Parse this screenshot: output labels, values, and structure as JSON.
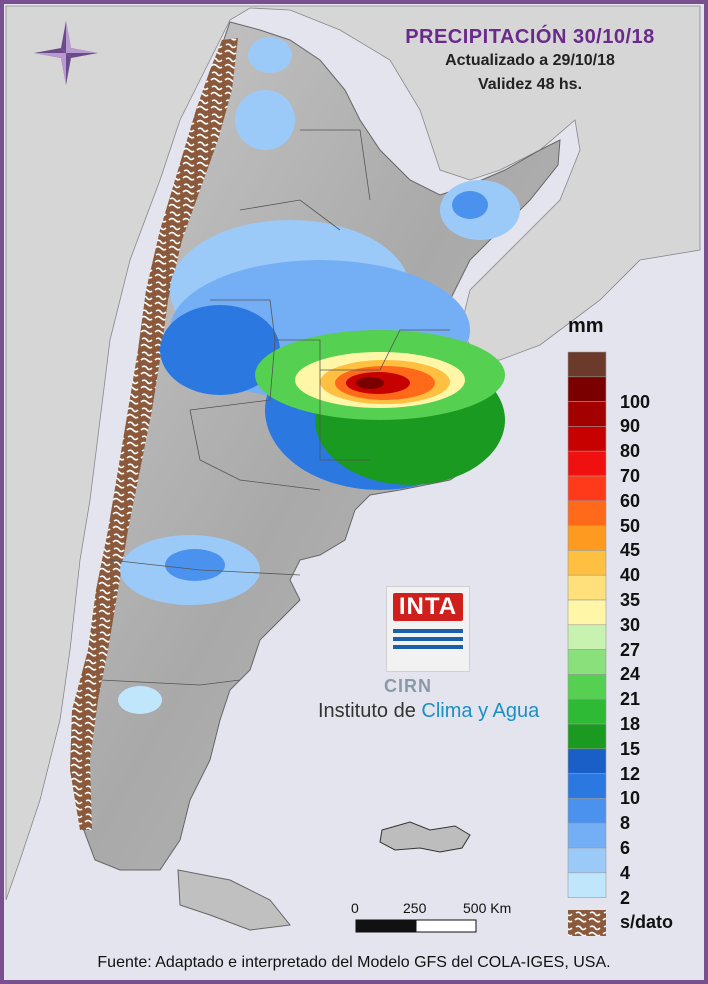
{
  "header": {
    "title": "PRECIPITACIÓN 30/10/18",
    "updated": "Actualizado a 29/10/18",
    "validity": "Validez 48 hs."
  },
  "legend": {
    "unit": "mm",
    "items": [
      {
        "label": "",
        "color": "#6b3a2a"
      },
      {
        "label": "100",
        "color": "#7a0000"
      },
      {
        "label": "90",
        "color": "#a30000"
      },
      {
        "label": "80",
        "color": "#c70000"
      },
      {
        "label": "70",
        "color": "#f01010"
      },
      {
        "label": "60",
        "color": "#ff3a1a"
      },
      {
        "label": "50",
        "color": "#ff6a1a"
      },
      {
        "label": "45",
        "color": "#ff9a20"
      },
      {
        "label": "40",
        "color": "#ffbf40"
      },
      {
        "label": "35",
        "color": "#ffe07a"
      },
      {
        "label": "30",
        "color": "#fff6a8"
      },
      {
        "label": "27",
        "color": "#c8f2b0"
      },
      {
        "label": "24",
        "color": "#8ae07a"
      },
      {
        "label": "21",
        "color": "#55d050"
      },
      {
        "label": "18",
        "color": "#2fba36"
      },
      {
        "label": "15",
        "color": "#1a9a20"
      },
      {
        "label": "12",
        "color": "#1a5fc8"
      },
      {
        "label": "10",
        "color": "#2a78e0"
      },
      {
        "label": "8",
        "color": "#4a92ee"
      },
      {
        "label": "6",
        "color": "#74aef4"
      },
      {
        "label": "4",
        "color": "#9ccaf8"
      },
      {
        "label": "2",
        "color": "#bfe6fb"
      }
    ],
    "no_data_label": "s/dato",
    "no_data_color": "#8b5a3c"
  },
  "scale_bar": {
    "labels": [
      "0",
      "250",
      "500 Km"
    ]
  },
  "logo": {
    "inta": "INTA",
    "cirn": "CIRN",
    "institute_prefix": "Instituto de ",
    "institute_accent": "Clima y Agua"
  },
  "footer": {
    "source": "Fuente: Adaptado e interpretado del Modelo GFS del COLA-IGES, USA."
  },
  "icons": {
    "compass": "compass-rose-icon"
  }
}
